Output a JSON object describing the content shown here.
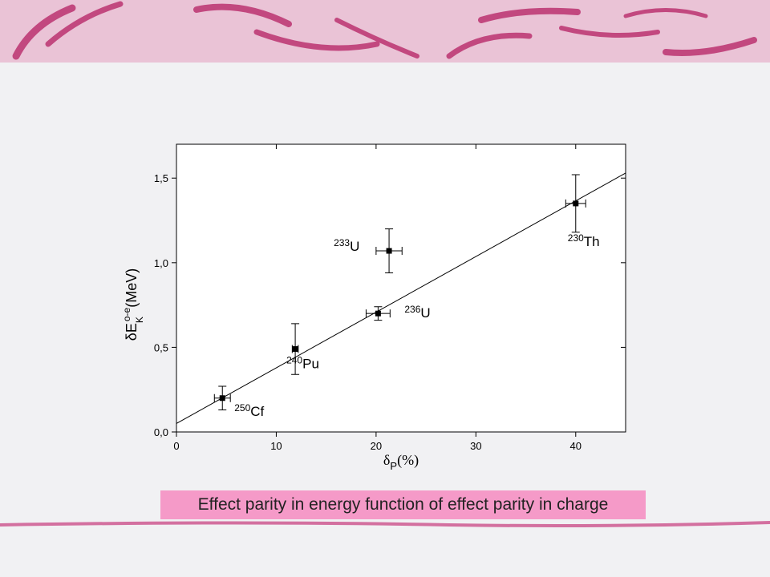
{
  "chart_data": {
    "type": "scatter",
    "title": "Effect parity in energy function of effect parity in charge",
    "x_label": {
      "symbol": "δ",
      "sub": "P",
      "unit": "(%)"
    },
    "y_label": {
      "symbol": "δE",
      "sub": "K",
      "sup": "o-e",
      "unit": "(MeV)"
    },
    "xlim": [
      0,
      45
    ],
    "ylim": [
      0,
      1.7
    ],
    "xticks": [
      0,
      10,
      20,
      30,
      40
    ],
    "yticks": [
      {
        "value": 0,
        "label": "0,0"
      },
      {
        "value": 0.5,
        "label": "0,5"
      },
      {
        "value": 1.0,
        "label": "1,0"
      },
      {
        "value": 1.5,
        "label": "1,5"
      }
    ],
    "color": "#000000",
    "points": [
      {
        "mass": "250",
        "element": "Cf",
        "x": 4.6,
        "y": 0.2,
        "xerr": 0.8,
        "yerr": 0.07
      },
      {
        "mass": "240",
        "element": "Pu",
        "x": 11.9,
        "y": 0.49,
        "xerr": 0.3,
        "yerr": 0.15
      },
      {
        "mass": "236",
        "element": "U",
        "x": 20.2,
        "y": 0.7,
        "xerr": 1.2,
        "yerr": 0.04
      },
      {
        "mass": "233",
        "element": "U",
        "x": 21.3,
        "y": 1.07,
        "xerr": 1.3,
        "yerr": 0.13
      },
      {
        "mass": "230",
        "element": "Th",
        "x": 40.0,
        "y": 1.35,
        "xerr": 1.0,
        "yerr": 0.17
      }
    ],
    "fit": {
      "x": [
        0,
        45
      ],
      "y": [
        0.05,
        1.53
      ]
    }
  }
}
